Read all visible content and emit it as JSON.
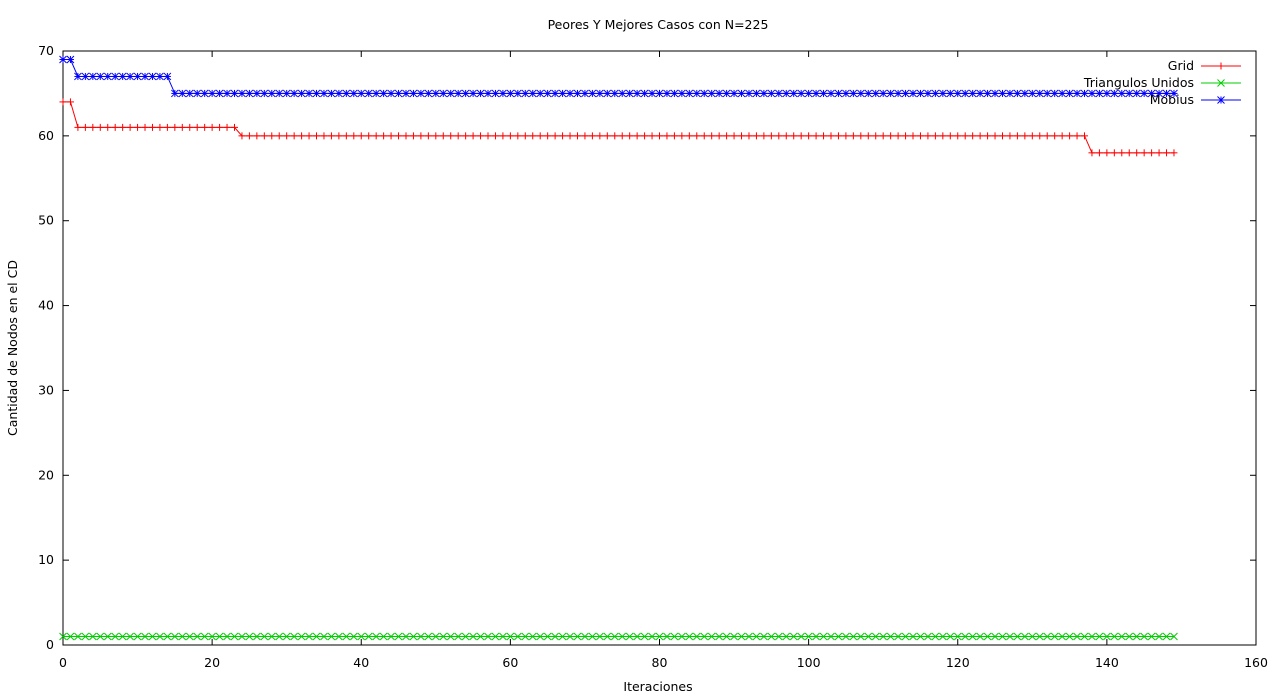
{
  "chart_data": {
    "type": "line",
    "title": "Peores Y Mejores Casos con N=225",
    "xlabel": "Iteraciones",
    "ylabel": "Cantidad de Nodos en el CD",
    "xlim": [
      0,
      160
    ],
    "ylim": [
      0,
      70
    ],
    "x_ticks": [
      0,
      20,
      40,
      60,
      80,
      100,
      120,
      140,
      160
    ],
    "y_ticks": [
      0,
      10,
      20,
      30,
      40,
      50,
      60,
      70
    ],
    "grid": false,
    "legend_position": "top-right",
    "x_range_points": [
      0,
      149
    ],
    "series": [
      {
        "name": "Grid",
        "color": "#ff0000",
        "marker": "plus",
        "steps": [
          {
            "from": 0,
            "to": 1,
            "value": 64
          },
          {
            "from": 2,
            "to": 23,
            "value": 61
          },
          {
            "from": 24,
            "to": 137,
            "value": 60
          },
          {
            "from": 138,
            "to": 149,
            "value": 58
          }
        ]
      },
      {
        "name": "Triangulos Unidos",
        "color": "#00cc00",
        "marker": "cross",
        "steps": [
          {
            "from": 0,
            "to": 149,
            "value": 1
          }
        ]
      },
      {
        "name": "Mobius",
        "color": "#0000ff",
        "marker": "star",
        "steps": [
          {
            "from": 0,
            "to": 1,
            "value": 69
          },
          {
            "from": 2,
            "to": 14,
            "value": 67
          },
          {
            "from": 15,
            "to": 149,
            "value": 65
          }
        ]
      }
    ]
  }
}
